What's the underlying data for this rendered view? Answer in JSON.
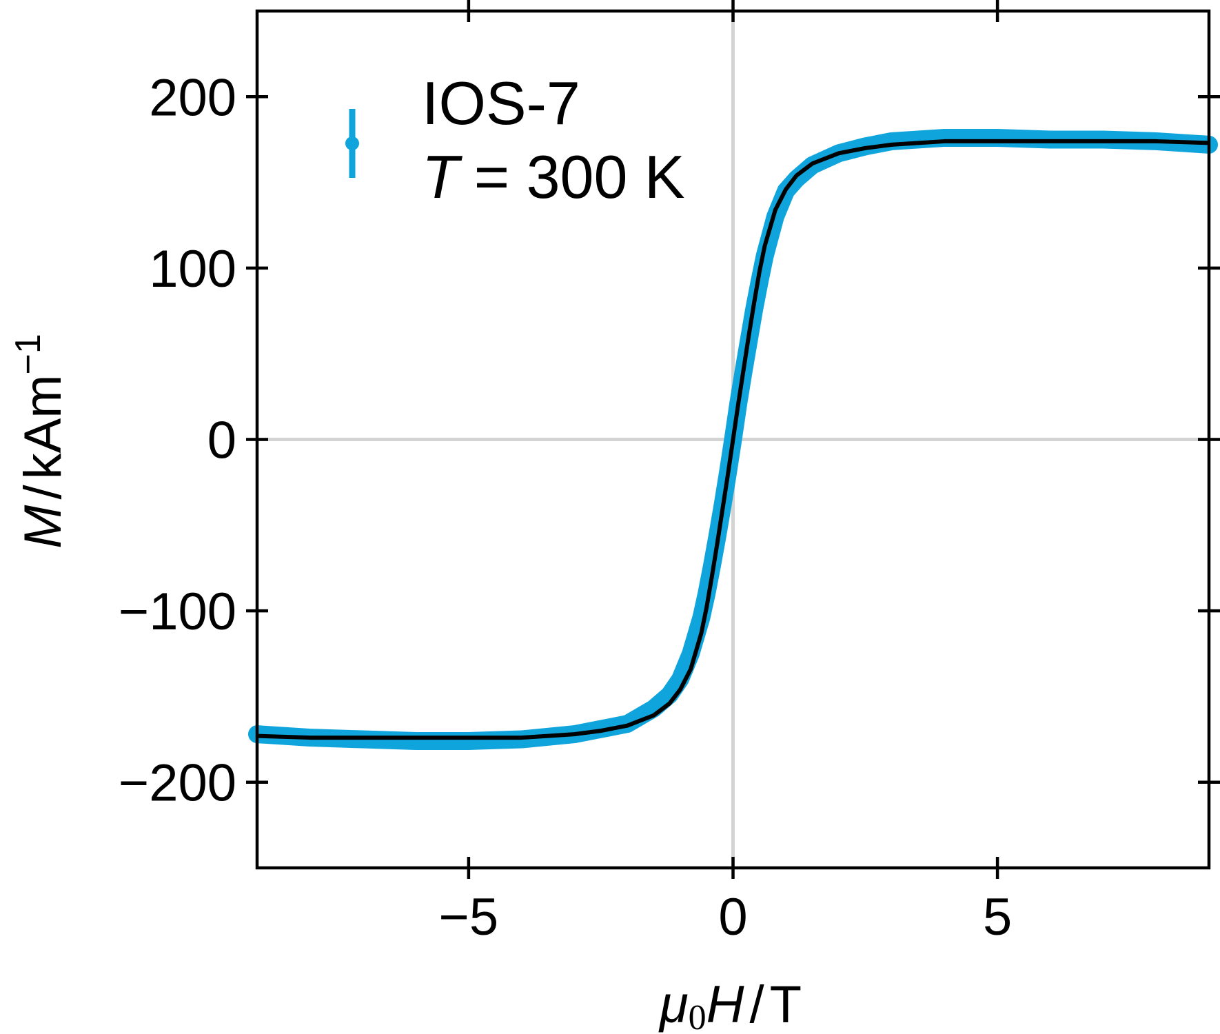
{
  "chart_data": {
    "type": "scatter",
    "xlabel": {
      "symbol": "μ",
      "subscript": "0",
      "var": "H",
      "unit": "T"
    },
    "ylabel": {
      "var": "M",
      "unit": "kAm",
      "unit_exp": "−1"
    },
    "xlim": [
      -9,
      9
    ],
    "ylim": [
      -250,
      250
    ],
    "x_ticks": [
      -5,
      0,
      5
    ],
    "x_tick_labels": [
      "−5",
      "0",
      "5"
    ],
    "y_ticks": [
      200,
      100,
      0,
      -100,
      -200
    ],
    "y_tick_labels": [
      "200",
      "100",
      "0",
      "−100",
      "−200"
    ],
    "zero_lines": true,
    "legend_placement": "top-left",
    "legend": {
      "name": "IOS-7",
      "condition_var": "T",
      "condition_value": "= 300 K"
    },
    "colors": {
      "data": "#0fa5dc",
      "fit": "#000000",
      "zero_line": "#d3d3d3"
    },
    "series": [
      {
        "name": "IOS-7",
        "kind": "data",
        "x": [
          -9,
          -8.5,
          -8,
          -7,
          -6,
          -5,
          -4,
          -3,
          -2.5,
          -2,
          -1.5,
          -1.2,
          -1,
          -0.8,
          -0.6,
          -0.5,
          -0.4,
          -0.3,
          -0.2,
          -0.1,
          0,
          0.1,
          0.2,
          0.3,
          0.4,
          0.5,
          0.6,
          0.8,
          1,
          1.2,
          1.5,
          2,
          2.5,
          3,
          4,
          5,
          6,
          7,
          8,
          8.5,
          9
        ],
        "y": [
          -172,
          -173,
          -174,
          -175,
          -176,
          -176,
          -175,
          -172,
          -169,
          -166,
          -157,
          -149,
          -140,
          -125,
          -104,
          -90,
          -74,
          -57,
          -39,
          -20,
          0,
          21,
          40,
          58,
          76,
          92,
          107,
          130,
          145,
          152,
          160,
          167,
          171,
          174,
          176,
          176,
          175,
          175,
          174,
          173,
          172
        ]
      },
      {
        "name": "fit",
        "kind": "fit",
        "x": [
          -9,
          -8,
          -7,
          -6,
          -5,
          -4,
          -3,
          -2.5,
          -2,
          -1.5,
          -1.2,
          -1,
          -0.8,
          -0.6,
          -0.5,
          -0.4,
          -0.3,
          -0.2,
          -0.1,
          0,
          0.1,
          0.2,
          0.3,
          0.4,
          0.5,
          0.6,
          0.8,
          1,
          1.2,
          1.5,
          2,
          2.5,
          3,
          4,
          5,
          6,
          7,
          8,
          9
        ],
        "y": [
          -173,
          -174,
          -174,
          -174,
          -174,
          -174,
          -172,
          -170,
          -167,
          -161,
          -154,
          -146,
          -134,
          -113,
          -98,
          -80,
          -61,
          -41,
          -21,
          0,
          21,
          41,
          61,
          80,
          98,
          113,
          134,
          146,
          154,
          161,
          167,
          170,
          172,
          174,
          174,
          174,
          174,
          174,
          173
        ]
      }
    ]
  }
}
